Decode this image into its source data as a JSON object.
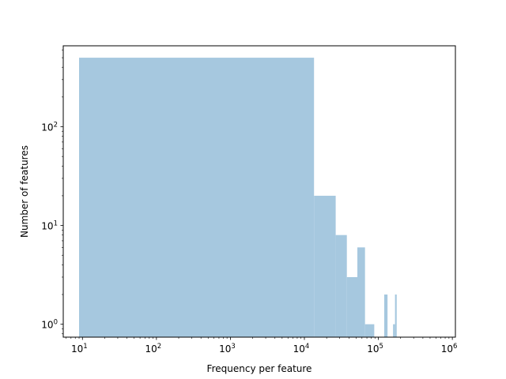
{
  "chart_data": {
    "type": "bar",
    "xlabel": "Frequency per feature",
    "ylabel": "Number of features",
    "xscale": "log",
    "yscale": "log",
    "xlim": [
      5.5,
      1100000
    ],
    "ylim": [
      0.74,
      660
    ],
    "grid": false,
    "bar_color": "#a6c8df",
    "x_ticks": [
      {
        "value": 10,
        "base": "10",
        "exp": "1"
      },
      {
        "value": 100,
        "base": "10",
        "exp": "2"
      },
      {
        "value": 1000,
        "base": "10",
        "exp": "3"
      },
      {
        "value": 10000,
        "base": "10",
        "exp": "4"
      },
      {
        "value": 100000,
        "base": "10",
        "exp": "5"
      },
      {
        "value": 1000000,
        "base": "10",
        "exp": "6"
      }
    ],
    "y_ticks": [
      {
        "value": 1,
        "base": "10",
        "exp": "0"
      },
      {
        "value": 10,
        "base": "10",
        "exp": "1"
      },
      {
        "value": 100,
        "base": "10",
        "exp": "2"
      }
    ],
    "bins": [
      {
        "x0": 9,
        "x1": 13500,
        "count": 500
      },
      {
        "x0": 13500,
        "x1": 26500,
        "count": 20
      },
      {
        "x0": 26500,
        "x1": 37500,
        "count": 8
      },
      {
        "x0": 37500,
        "x1": 52000,
        "count": 3
      },
      {
        "x0": 52000,
        "x1": 66000,
        "count": 6
      },
      {
        "x0": 66000,
        "x1": 88000,
        "count": 1
      },
      {
        "x0": 120000,
        "x1": 133000,
        "count": 2
      },
      {
        "x0": 158000,
        "x1": 168000,
        "count": 1
      },
      {
        "x0": 168000,
        "x1": 177000,
        "count": 2
      }
    ]
  }
}
